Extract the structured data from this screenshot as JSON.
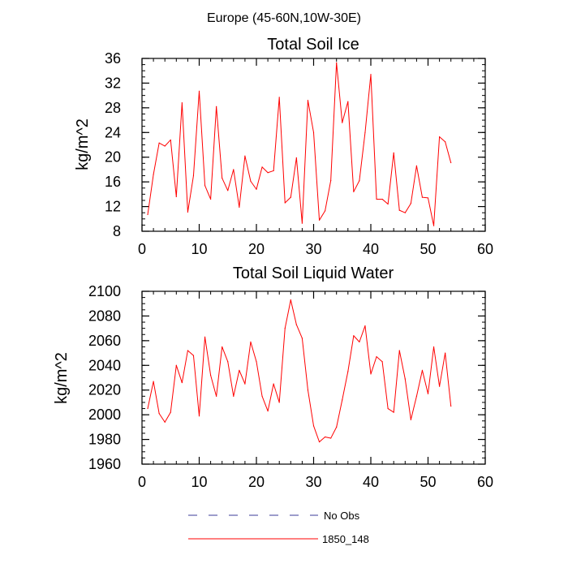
{
  "figure_title": "Europe (45-60N,10W-30E)",
  "chart_data": [
    {
      "type": "line",
      "title": "Total Soil Ice",
      "xlabel": "",
      "ylabel": "kg/m^2",
      "xlim": [
        0,
        60
      ],
      "ylim": [
        8,
        36
      ],
      "xticks": [
        0,
        10,
        20,
        30,
        40,
        50,
        60
      ],
      "yticks": [
        8,
        12,
        16,
        20,
        24,
        28,
        32,
        36
      ],
      "grid": false,
      "series": [
        {
          "name": "1850_148",
          "color": "#ff0000",
          "x": [
            1,
            2,
            3,
            4,
            5,
            6,
            7,
            8,
            9,
            10,
            11,
            12,
            13,
            14,
            15,
            16,
            17,
            18,
            19,
            20,
            21,
            22,
            23,
            24,
            25,
            26,
            27,
            28,
            29,
            30,
            31,
            32,
            33,
            34,
            35,
            36,
            37,
            38,
            39,
            40,
            41,
            42,
            43,
            44,
            45,
            46,
            47,
            48,
            49,
            50,
            51,
            52,
            53,
            54
          ],
          "values": [
            10.7,
            17.2,
            22.3,
            21.8,
            22.8,
            13.6,
            28.8,
            11.1,
            17.0,
            30.7,
            15.4,
            13.2,
            28.2,
            16.6,
            14.6,
            18.0,
            11.9,
            20.2,
            16.1,
            14.8,
            18.4,
            17.5,
            17.8,
            29.7,
            12.6,
            13.5,
            19.9,
            9.3,
            29.2,
            24.0,
            9.8,
            11.3,
            16.2,
            35.3,
            25.6,
            29.0,
            14.4,
            16.2,
            24.0,
            33.4,
            13.2,
            13.2,
            12.4,
            20.7,
            11.4,
            11.0,
            12.5,
            18.6,
            13.5,
            13.4,
            8.9,
            23.3,
            22.5,
            19.1
          ]
        }
      ]
    },
    {
      "type": "line",
      "title": "Total Soil Liquid Water",
      "xlabel": "",
      "ylabel": "kg/m^2",
      "xlim": [
        0,
        60
      ],
      "ylim": [
        1960,
        2100
      ],
      "xticks": [
        0,
        10,
        20,
        30,
        40,
        50,
        60
      ],
      "yticks": [
        1960,
        1980,
        2000,
        2020,
        2040,
        2060,
        2080,
        2100
      ],
      "grid": false,
      "series": [
        {
          "name": "1850_148",
          "color": "#ff0000",
          "x": [
            1,
            2,
            3,
            4,
            5,
            6,
            7,
            8,
            9,
            10,
            11,
            12,
            13,
            14,
            15,
            16,
            17,
            18,
            19,
            20,
            21,
            22,
            23,
            24,
            25,
            26,
            27,
            28,
            29,
            30,
            31,
            32,
            33,
            34,
            35,
            36,
            37,
            38,
            39,
            40,
            41,
            42,
            43,
            44,
            45,
            46,
            47,
            48,
            49,
            50,
            51,
            52,
            53,
            54
          ],
          "values": [
            2005,
            2027,
            2001,
            1994,
            2002,
            2040,
            2026,
            2052,
            2048,
            1999,
            2063,
            2032,
            2015,
            2055,
            2043,
            2015,
            2036,
            2025,
            2059,
            2043,
            2015,
            2003,
            2025,
            2010,
            2070,
            2093,
            2073,
            2062,
            2020,
            1991,
            1978,
            1982,
            1981,
            1990,
            2012,
            2035,
            2064,
            2059,
            2072,
            2033,
            2047,
            2043,
            2005,
            2002,
            2052,
            2029,
            1996,
            2015,
            2036,
            2017,
            2055,
            2023,
            2050,
            2007
          ]
        }
      ]
    }
  ],
  "legend": {
    "placement": "bottom",
    "entries": [
      {
        "label": "No Obs",
        "color": "#3b3b9a",
        "style": "dashed"
      },
      {
        "label": "1850_148",
        "color": "#ff0000",
        "style": "solid"
      }
    ]
  }
}
